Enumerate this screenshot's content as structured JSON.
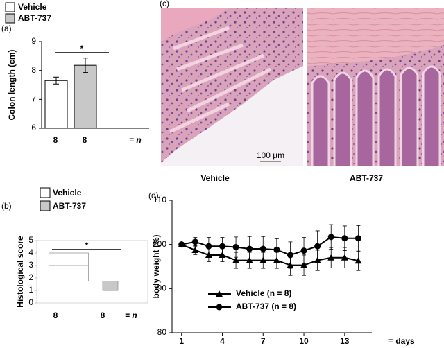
{
  "chart_data": [
    {
      "type": "bar",
      "label": "(a)",
      "ylabel": "Colon length (cm)",
      "legend": [
        "Vehicle",
        "ABT-737"
      ],
      "categories": [
        "8",
        "8"
      ],
      "values": [
        7.65,
        8.18
      ],
      "errors": [
        0.12,
        0.25
      ],
      "colors": [
        "#ffffff",
        "#c8c8c8"
      ],
      "ylim": [
        6,
        9
      ],
      "yticks": [
        6,
        7,
        8,
        9
      ],
      "significance": "*",
      "n_label": "= n"
    },
    {
      "type": "box",
      "label": "(b)",
      "ylabel": "Histological score",
      "legend": [
        "Vehicle",
        "ABT-737"
      ],
      "categories": [
        "8",
        "8"
      ],
      "colors": [
        "#ffffff",
        "#c8c8c8"
      ],
      "boxes": [
        {
          "q1": 1.75,
          "median": 3,
          "q3": 4
        },
        {
          "q1": 1,
          "median": 1,
          "q3": 1.75
        }
      ],
      "ylim": [
        0,
        5
      ],
      "yticks": [
        0,
        1,
        2,
        3,
        4,
        5
      ],
      "significance": "*",
      "n_label": "= n"
    },
    {
      "type": "line",
      "label": "(d)",
      "ylabel": "body weight (%)",
      "xlabel": "= days",
      "x": [
        1,
        2,
        3,
        4,
        5,
        6,
        7,
        8,
        9,
        10,
        11,
        12,
        13,
        14
      ],
      "series": [
        {
          "name": "Vehicle (n = 8)",
          "color": "#000000",
          "marker": "triangle",
          "values": [
            100,
            98.7,
            97.6,
            97.6,
            96.4,
            96.4,
            96.4,
            96.4,
            95.3,
            95.3,
            96.4,
            97,
            97,
            96.3
          ],
          "errors": [
            0.5,
            1,
            1.5,
            1.5,
            1.8,
            1.8,
            1.8,
            1.8,
            2.3,
            2.3,
            2.3,
            2.3,
            2.3,
            2.2
          ]
        },
        {
          "name": "ABT-737 (n = 8)",
          "color": "#000000",
          "marker": "circle",
          "values": [
            100,
            100.6,
            99.6,
            99.6,
            99.4,
            99,
            99,
            98.8,
            97.6,
            98.6,
            99.6,
            101.7,
            101.4,
            101.4
          ],
          "errors": [
            0.4,
            1,
            2,
            2,
            2.3,
            2.8,
            2.8,
            2.5,
            3,
            3,
            3.5,
            2.8,
            2.8,
            2.9
          ]
        }
      ],
      "xlim": [
        0.3,
        15
      ],
      "xticks": [
        1,
        4,
        7,
        10,
        13
      ],
      "ylim": [
        80,
        110
      ],
      "yticks": [
        80,
        90,
        100,
        110
      ]
    }
  ],
  "panel_c": {
    "label": "(c)",
    "captions": [
      "Vehicle",
      "ABT-737"
    ],
    "scale_bar": "100 µm"
  }
}
